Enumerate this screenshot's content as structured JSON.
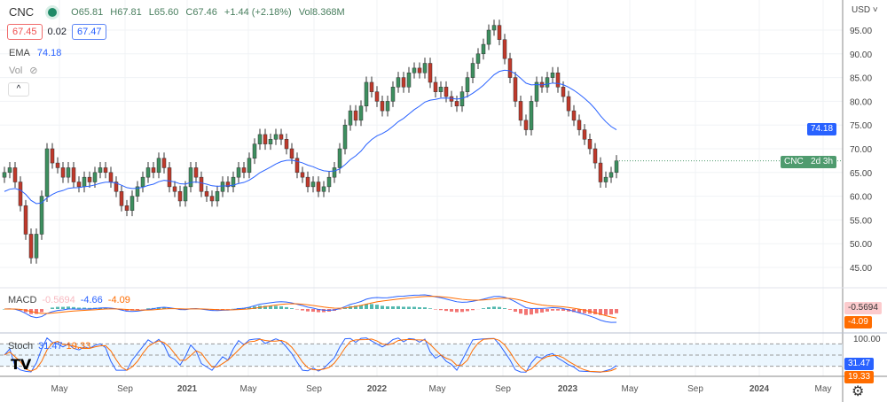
{
  "header": {
    "symbol": "CNC",
    "open": "O65.81",
    "high": "H67.81",
    "low": "L65.60",
    "close": "C67.46",
    "change": "+1.44 (+2.18%)",
    "volume": "Vol8.368M",
    "bid": "67.45",
    "spread": "0.02",
    "ask": "67.47",
    "ema_label": "EMA",
    "ema_value": "74.18",
    "vol_label": "Vol",
    "collapse": "^"
  },
  "axis": {
    "currency": "USD ˅",
    "price_ticks": [
      "95.00",
      "90.00",
      "85.00",
      "80.00",
      "75.00",
      "70.00",
      "65.00",
      "60.00",
      "55.00",
      "50.00",
      "45.00"
    ],
    "time_ticks": [
      "May",
      "Sep",
      "2021",
      "May",
      "Sep",
      "2022",
      "May",
      "Sep",
      "2023",
      "May",
      "Sep",
      "2024",
      "May"
    ],
    "ema_tag": "74.18",
    "price_tag": "CNC",
    "countdown": "2d 3h",
    "macd_hist_tag": "-0.5694",
    "macd_signal_tag": "-4.09",
    "stoch_max": "100.00",
    "stoch_k_tag": "31.47",
    "stoch_d_tag": "19.33"
  },
  "macd": {
    "label": "MACD",
    "hist": "-0.5694",
    "macd": "-4.66",
    "signal": "-4.09"
  },
  "stoch": {
    "label": "Stoch",
    "k": "31.47",
    "d": "19.33"
  },
  "logo": "TV",
  "icons": {
    "settings": "gear-icon",
    "visibility": "eye-off-icon"
  },
  "colors": {
    "up": "#26a69a",
    "up_body": "#3d8f5f",
    "down": "#ef5350",
    "down_body": "#c0392b",
    "ema": "#2962ff",
    "signal": "#ff6d00"
  },
  "chart_data": {
    "type": "candlestick",
    "title": "CNC",
    "ylim": [
      40,
      98
    ],
    "interval": "weekly",
    "xticks": [
      "May",
      "Sep",
      "2021",
      "May",
      "Sep",
      "2022",
      "May",
      "Sep",
      "2023",
      "May",
      "Sep",
      "2024",
      "May"
    ],
    "closes": [
      65,
      66,
      63,
      58,
      52,
      47,
      52,
      60,
      70,
      67,
      66,
      64,
      66,
      63,
      62,
      64,
      63,
      65,
      66,
      65,
      63,
      61,
      58,
      57,
      60,
      62,
      64,
      66,
      65,
      68,
      66,
      62,
      61,
      59,
      62,
      66,
      64,
      61,
      60,
      59,
      61,
      63,
      62,
      64,
      66,
      65,
      68,
      71,
      73,
      71,
      72,
      73,
      72,
      70,
      68,
      65,
      64,
      62,
      63,
      61,
      62,
      64,
      66,
      70,
      75,
      78,
      76,
      79,
      84,
      82,
      80,
      78,
      80,
      83,
      85,
      83,
      86,
      87,
      86,
      88,
      84,
      82,
      83,
      81,
      80,
      79,
      82,
      85,
      88,
      90,
      92,
      95,
      96,
      93,
      89,
      85,
      80,
      76,
      74,
      80,
      84,
      83,
      85,
      86,
      83,
      81,
      78,
      76,
      74,
      72,
      70,
      67,
      63,
      64,
      65,
      67.46
    ],
    "ema_last": 74.18
  }
}
